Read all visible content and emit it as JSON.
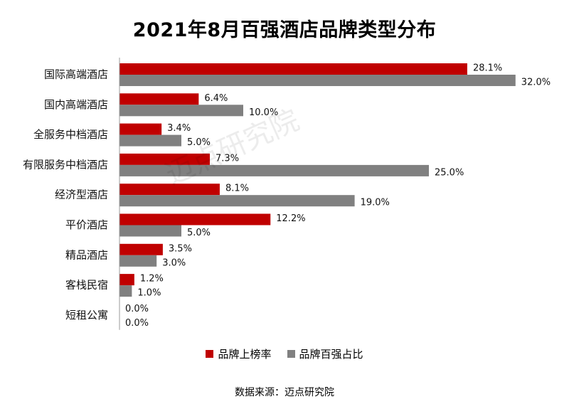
{
  "chart_data": {
    "type": "bar",
    "orientation": "horizontal",
    "title": "2021年8月百强酒店品牌类型分布",
    "categories": [
      "国际高端酒店",
      "国内高端酒店",
      "全服务中档酒店",
      "有限服务中档酒店",
      "经济型酒店",
      "平价酒店",
      "精品酒店",
      "客栈民宿",
      "短租公寓"
    ],
    "series": [
      {
        "name": "品牌上榜率",
        "color": "#c00000",
        "values": [
          28.1,
          6.4,
          3.4,
          7.3,
          8.1,
          12.2,
          3.5,
          1.2,
          0.0
        ],
        "labels": [
          "28.1%",
          "6.4%",
          "3.4%",
          "7.3%",
          "8.1%",
          "12.2%",
          "3.5%",
          "1.2%",
          "0.0%"
        ]
      },
      {
        "name": "品牌百强占比",
        "color": "#808080",
        "values": [
          32.0,
          10.0,
          5.0,
          25.0,
          19.0,
          5.0,
          3.0,
          1.0,
          0.0
        ],
        "labels": [
          "32.0%",
          "10.0%",
          "5.0%",
          "25.0%",
          "19.0%",
          "5.0%",
          "3.0%",
          "1.0%",
          "0.0%"
        ]
      }
    ],
    "xlim": [
      0,
      32
    ],
    "legend_position": "bottom",
    "grid": false
  },
  "source": "数据来源：迈点研究院",
  "watermark": "迈点研究院"
}
